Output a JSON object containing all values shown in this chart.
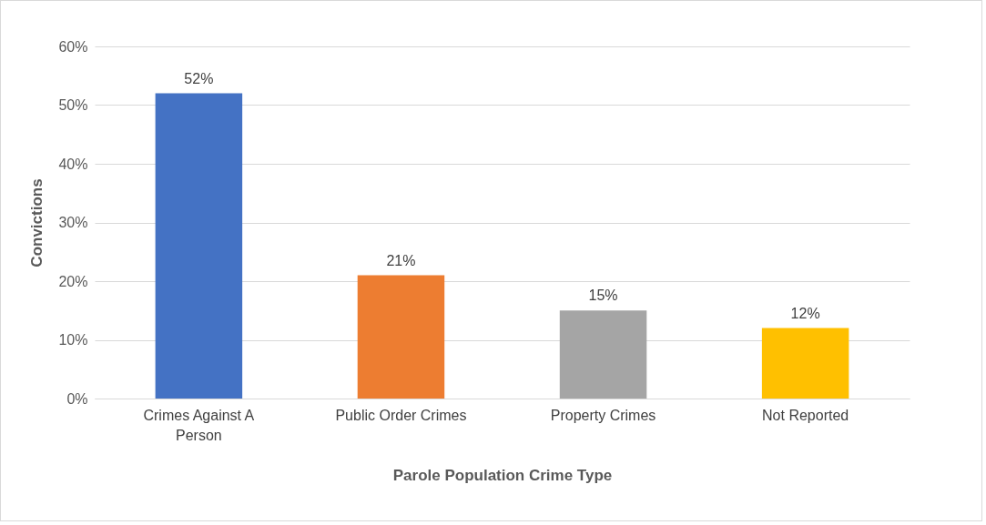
{
  "chart_data": {
    "type": "bar",
    "xlabel": "Parole Population Crime Type",
    "ylabel": "Convictions",
    "categories": [
      "Crimes Against A Person",
      "Public Order Crimes",
      "Property Crimes",
      "Not Reported"
    ],
    "values": [
      52,
      21,
      15,
      12
    ],
    "colors": [
      "#4472c4",
      "#ed7d31",
      "#a5a5a5",
      "#ffc000"
    ],
    "value_labels": [
      "52%",
      "21%",
      "15%",
      "12%"
    ],
    "ylim": [
      0,
      60
    ],
    "yticks": [
      {
        "value": 0,
        "label": "0%"
      },
      {
        "value": 10,
        "label": "10%"
      },
      {
        "value": 20,
        "label": "20%"
      },
      {
        "value": 30,
        "label": "30%"
      },
      {
        "value": 40,
        "label": "40%"
      },
      {
        "value": 50,
        "label": "50%"
      },
      {
        "value": 60,
        "label": "60%"
      }
    ],
    "grid": "y"
  }
}
